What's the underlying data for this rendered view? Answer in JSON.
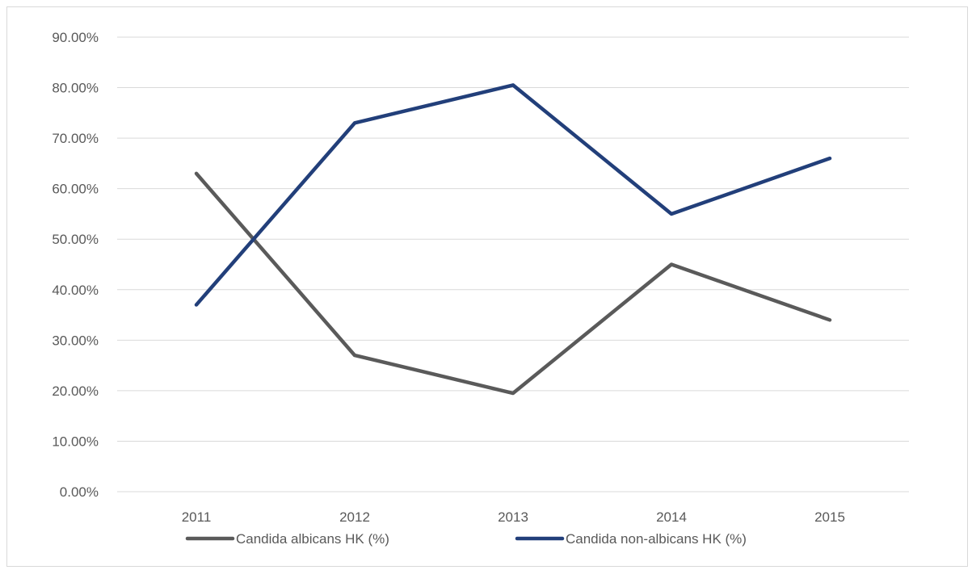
{
  "chart_data": {
    "type": "line",
    "categories": [
      "2011",
      "2012",
      "2013",
      "2014",
      "2015"
    ],
    "series": [
      {
        "name": "Candida albicans HK (%)",
        "values": [
          0.63,
          0.27,
          0.195,
          0.45,
          0.34
        ],
        "color": "#5a5a5a"
      },
      {
        "name": "Candida non-albicans HK (%)",
        "values": [
          0.37,
          0.73,
          0.805,
          0.55,
          0.66
        ],
        "color": "#223f7a"
      }
    ],
    "ylim": [
      0,
      0.9
    ],
    "yticks": [
      "0.00%",
      "10.00%",
      "20.00%",
      "30.00%",
      "40.00%",
      "50.00%",
      "60.00%",
      "70.00%",
      "80.00%",
      "90.00%"
    ],
    "grid": true,
    "legend_position": "bottom",
    "title": "",
    "xlabel": "",
    "ylabel": ""
  }
}
